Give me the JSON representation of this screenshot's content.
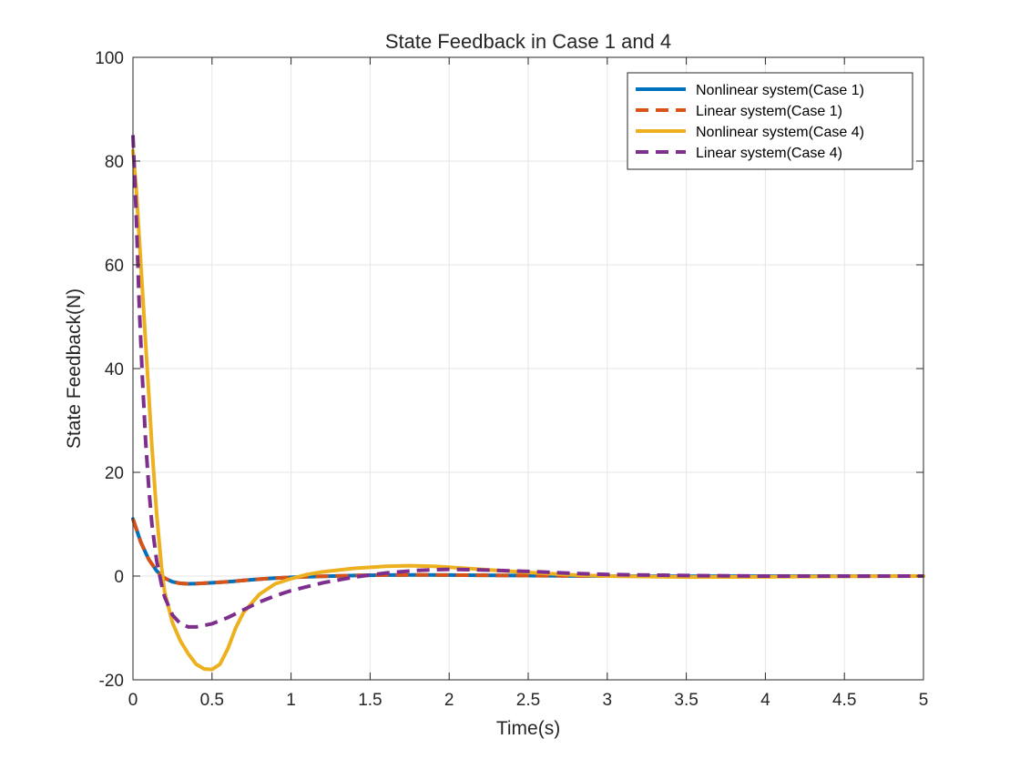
{
  "chart_data": {
    "type": "line",
    "title": "State Feedback in Case 1 and 4",
    "xlabel": "Time(s)",
    "ylabel": "State Feedback(N)",
    "xlim": [
      0,
      5
    ],
    "ylim": [
      -20,
      100
    ],
    "xticks": [
      0,
      0.5,
      1,
      1.5,
      2,
      2.5,
      3,
      3.5,
      4,
      4.5,
      5
    ],
    "xtick_labels": [
      "0",
      "0.5",
      "1",
      "1.5",
      "2",
      "2.5",
      "3",
      "3.5",
      "4",
      "4.5",
      "5"
    ],
    "yticks": [
      -20,
      0,
      20,
      40,
      60,
      80,
      100
    ],
    "ytick_labels": [
      "-20",
      "0",
      "20",
      "40",
      "60",
      "80",
      "100"
    ],
    "grid": true,
    "legend_position": "top-right",
    "series": [
      {
        "name": "Nonlinear system(Case 1)",
        "color": "#0072BD",
        "style": "solid",
        "x": [
          0,
          0.05,
          0.1,
          0.15,
          0.2,
          0.25,
          0.3,
          0.35,
          0.4,
          0.5,
          0.6,
          0.7,
          0.8,
          0.9,
          1.0,
          1.2,
          1.4,
          1.6,
          1.8,
          2.0,
          2.2,
          2.5,
          3.0,
          3.5,
          4.0,
          4.5,
          5.0
        ],
        "y": [
          11,
          6.5,
          3.2,
          1.0,
          -0.4,
          -1.1,
          -1.4,
          -1.5,
          -1.45,
          -1.3,
          -1.1,
          -0.85,
          -0.6,
          -0.4,
          -0.25,
          -0.05,
          0.1,
          0.2,
          0.22,
          0.2,
          0.15,
          0.08,
          0.0,
          -0.03,
          -0.02,
          -0.01,
          0.0
        ]
      },
      {
        "name": "Linear system(Case 1)",
        "color": "#D95319",
        "style": "dashed",
        "x": [
          0,
          0.05,
          0.1,
          0.15,
          0.2,
          0.25,
          0.3,
          0.35,
          0.4,
          0.5,
          0.6,
          0.7,
          0.8,
          0.9,
          1.0,
          1.2,
          1.4,
          1.6,
          1.8,
          2.0,
          2.2,
          2.5,
          3.0,
          3.5,
          4.0,
          4.5,
          5.0
        ],
        "y": [
          11,
          6.5,
          3.2,
          1.0,
          -0.4,
          -1.1,
          -1.4,
          -1.5,
          -1.45,
          -1.3,
          -1.1,
          -0.85,
          -0.6,
          -0.4,
          -0.25,
          -0.05,
          0.1,
          0.2,
          0.22,
          0.2,
          0.15,
          0.08,
          0.0,
          -0.03,
          -0.02,
          -0.01,
          0.0
        ]
      },
      {
        "name": "Nonlinear system(Case 4)",
        "color": "#EDB120",
        "style": "solid",
        "x": [
          0,
          0.02,
          0.05,
          0.08,
          0.1,
          0.12,
          0.15,
          0.18,
          0.2,
          0.25,
          0.3,
          0.35,
          0.4,
          0.45,
          0.5,
          0.55,
          0.6,
          0.65,
          0.7,
          0.8,
          0.9,
          1.0,
          1.1,
          1.2,
          1.4,
          1.6,
          1.75,
          1.9,
          2.0,
          2.2,
          2.5,
          2.8,
          3.0,
          3.5,
          4.0,
          4.5,
          5.0
        ],
        "y": [
          82,
          75,
          60,
          45,
          35,
          25,
          12,
          2,
          -3,
          -9,
          -12.5,
          -15,
          -17,
          -17.9,
          -18,
          -17,
          -14,
          -10,
          -7,
          -3.5,
          -1.5,
          -0.5,
          0.3,
          0.8,
          1.5,
          1.9,
          2.0,
          1.9,
          1.7,
          1.3,
          0.7,
          0.2,
          0.0,
          -0.2,
          -0.15,
          -0.05,
          0.0
        ]
      },
      {
        "name": "Linear system(Case 4)",
        "color": "#7E2F8E",
        "style": "dashed",
        "x": [
          0,
          0.02,
          0.04,
          0.06,
          0.08,
          0.1,
          0.12,
          0.15,
          0.18,
          0.2,
          0.25,
          0.3,
          0.35,
          0.4,
          0.5,
          0.6,
          0.7,
          0.8,
          0.9,
          1.0,
          1.2,
          1.4,
          1.6,
          1.8,
          2.0,
          2.2,
          2.5,
          2.8,
          3.0,
          3.5,
          4.0,
          4.5,
          5.0
        ],
        "y": [
          85,
          70,
          52,
          38,
          26,
          17,
          10,
          3,
          -1.5,
          -4,
          -7.5,
          -9.2,
          -9.8,
          -9.8,
          -9.2,
          -8,
          -6.5,
          -5,
          -3.8,
          -2.8,
          -1.3,
          -0.2,
          0.6,
          1.1,
          1.3,
          1.2,
          0.9,
          0.5,
          0.3,
          0.1,
          0.0,
          0.0,
          0.0
        ]
      }
    ]
  }
}
